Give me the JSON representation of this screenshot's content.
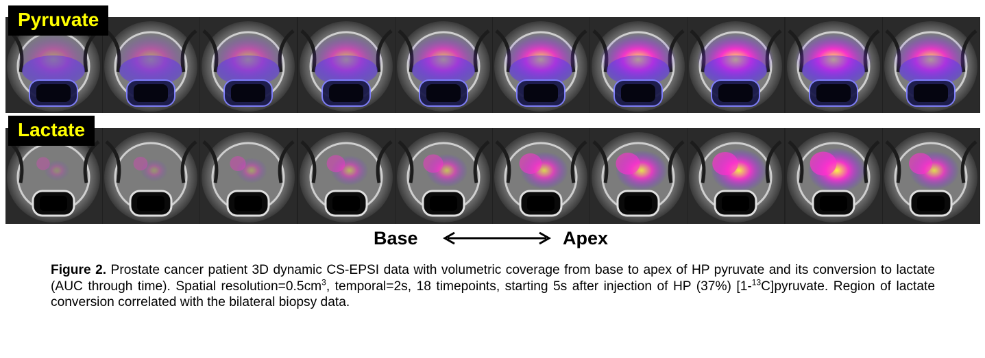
{
  "panels": {
    "row1_label": "Pyruvate",
    "row2_label": "Lactate"
  },
  "axis": {
    "left": "Base",
    "right": "Apex"
  },
  "caption": {
    "figure_label": "Figure 2.",
    "text_1": "Prostate cancer patient 3D dynamic CS-EPSI data with volumetric coverage from base to apex of HP pyruvate and its conversion to lactate (AUC through time). Spatial resolution=0.5cm",
    "sup_1": "3",
    "text_2": ", temporal=2s, 18 timepoints, starting 5s after injection of HP (37%) [1-",
    "sup_2": "13",
    "text_3": "C]pyruvate. Region of lactate conversion correlated with the bilateral biopsy data."
  },
  "colors": {
    "label_bg": "#000000",
    "label_text": "#ffff00",
    "overlay_low": "#5a2cff",
    "overlay_mid": "#ff2fd0",
    "overlay_high": "#ffff40"
  },
  "slices": {
    "count": 10,
    "pyruvate_intensity": [
      0.35,
      0.4,
      0.5,
      0.6,
      0.7,
      0.85,
      0.95,
      1.0,
      1.0,
      0.9
    ],
    "lactate_intensity": [
      0.15,
      0.2,
      0.3,
      0.45,
      0.55,
      0.7,
      0.8,
      0.9,
      0.95,
      0.75
    ]
  }
}
